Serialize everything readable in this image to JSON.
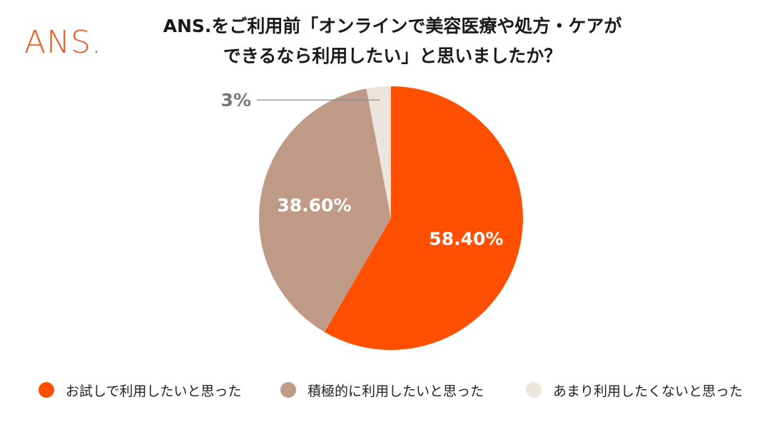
{
  "logo": {
    "text": "ANS."
  },
  "title": {
    "line1": "ANS.をご利用前「オンラインで美容医療や処方・ケアが",
    "line2": "できるなら利用したい」と思いましたか？"
  },
  "chart_data": {
    "type": "pie",
    "title": "ANS.をご利用前「オンラインで美容医療や処方・ケアができるなら利用したい」と思いましたか？",
    "slices": [
      {
        "label": "お試しで利用したいと思った",
        "value": 58.4,
        "display": "58.40%",
        "color": "#fe5000"
      },
      {
        "label": "積極的に利用したいと思った",
        "value": 38.6,
        "display": "38.60%",
        "color": "#bf9b87"
      },
      {
        "label": "あまり利用したくないと思った",
        "value": 3,
        "display": "3%",
        "color": "#ebe5dd"
      }
    ],
    "start_angle": "12 o'clock",
    "direction": "clockwise",
    "legend_position": "bottom",
    "label_color_inside": "#ffffff",
    "label_color_outside": "#777777"
  }
}
